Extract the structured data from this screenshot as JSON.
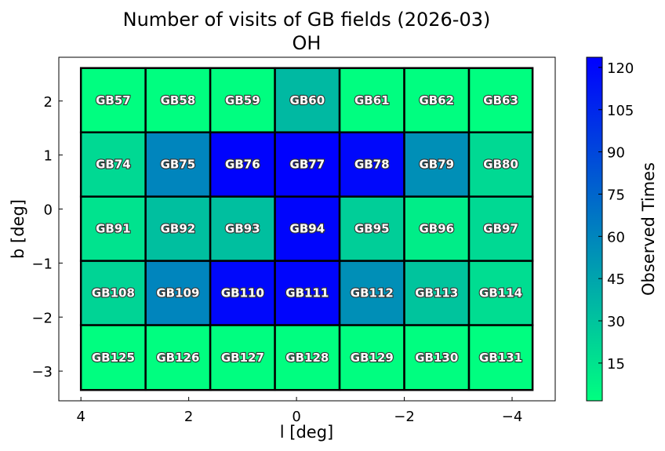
{
  "chart_data": {
    "type": "heatmap",
    "title": "Number of visits of GB fields (2026-03)",
    "subtitle": "OH",
    "xlabel": "l [deg]",
    "ylabel": "b [deg]",
    "xlim": [
      4.41,
      -4.8
    ],
    "ylim": [
      -3.55,
      2.81
    ],
    "xticks": [
      4,
      2,
      0,
      -2,
      -4
    ],
    "xtick_labels": [
      "4",
      "2",
      "0",
      "−2",
      "−4"
    ],
    "yticks": [
      2,
      1,
      0,
      -1,
      -2,
      -3
    ],
    "ytick_labels": [
      "2",
      "1",
      "0",
      "−1",
      "−2",
      "−3"
    ],
    "l_edges": [
      4.0,
      2.8,
      1.6,
      0.4,
      -0.8,
      -2.0,
      -3.2,
      -4.38
    ],
    "b_edges": [
      2.61,
      1.42,
      0.23,
      -0.96,
      -2.15,
      -3.35
    ],
    "fields": [
      [
        "GB57",
        "GB58",
        "GB59",
        "GB60",
        "GB61",
        "GB62",
        "GB63"
      ],
      [
        "GB74",
        "GB75",
        "GB76",
        "GB77",
        "GB78",
        "GB79",
        "GB80"
      ],
      [
        "GB91",
        "GB92",
        "GB93",
        "GB94",
        "GB95",
        "GB96",
        "GB97"
      ],
      [
        "GB108",
        "GB109",
        "GB110",
        "GB111",
        "GB112",
        "GB113",
        "GB114"
      ],
      [
        "GB125",
        "GB126",
        "GB127",
        "GB128",
        "GB129",
        "GB130",
        "GB131"
      ]
    ],
    "values": [
      [
        2,
        2,
        2,
        35,
        2,
        2,
        2
      ],
      [
        20,
        60,
        122,
        123,
        120,
        55,
        20
      ],
      [
        15,
        32,
        32,
        121,
        25,
        10,
        20
      ],
      [
        22,
        60,
        120,
        121,
        55,
        30,
        18
      ],
      [
        2,
        2,
        2,
        2,
        2,
        2,
        2
      ]
    ],
    "colorbar": {
      "label": "Observed Times",
      "range": [
        1.6,
        123.6
      ],
      "ticks": [
        15,
        30,
        45,
        60,
        75,
        90,
        105,
        120
      ],
      "colormap": "winter_r",
      "low_color": "#00ff80",
      "high_color": "#0000ff"
    }
  }
}
